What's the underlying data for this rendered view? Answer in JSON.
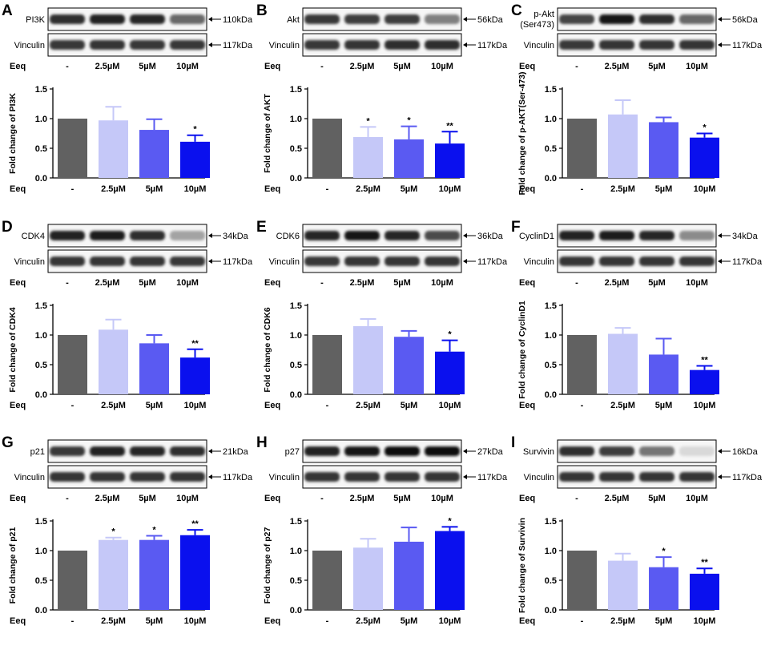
{
  "figure": {
    "dose_header": "Eeq",
    "doses": [
      "-",
      "2.5µM",
      "5µM",
      "10µM"
    ],
    "bar_colors": [
      "#616161",
      "#c5c8f8",
      "#5a5af2",
      "#0a10ee"
    ],
    "y_ticks": [
      "0.0",
      "0.5",
      "1.0",
      "1.5"
    ],
    "panels": [
      {
        "letter": "A",
        "blots": [
          {
            "label": "PI3K",
            "kda": "110kDa",
            "intensity": [
              0.85,
              0.9,
              0.88,
              0.6
            ]
          },
          {
            "label": "Vinculin",
            "kda": "117kDa",
            "intensity": [
              0.8,
              0.82,
              0.8,
              0.8
            ]
          }
        ]
      },
      {
        "letter": "B",
        "blots": [
          {
            "label": "Akt",
            "kda": "56kDa",
            "intensity": [
              0.8,
              0.78,
              0.78,
              0.5
            ]
          },
          {
            "label": "Vinculin",
            "kda": "117kDa",
            "intensity": [
              0.8,
              0.82,
              0.85,
              0.85
            ]
          }
        ]
      },
      {
        "letter": "C",
        "blots": [
          {
            "label": "p-Akt",
            "label2": "(Ser473)",
            "kda": "56kDa",
            "intensity": [
              0.75,
              0.95,
              0.85,
              0.6
            ]
          },
          {
            "label": "Vinculin",
            "kda": "117kDa",
            "intensity": [
              0.8,
              0.82,
              0.82,
              0.82
            ]
          }
        ]
      },
      {
        "letter": "D",
        "blots": [
          {
            "label": "CDK4",
            "kda": "34kDa",
            "intensity": [
              0.9,
              0.92,
              0.85,
              0.35
            ]
          },
          {
            "label": "Vinculin",
            "kda": "117kDa",
            "intensity": [
              0.82,
              0.82,
              0.82,
              0.8
            ]
          }
        ]
      },
      {
        "letter": "E",
        "blots": [
          {
            "label": "CDK6",
            "kda": "36kDa",
            "intensity": [
              0.88,
              0.95,
              0.88,
              0.72
            ]
          },
          {
            "label": "Vinculin",
            "kda": "117kDa",
            "intensity": [
              0.8,
              0.82,
              0.82,
              0.82
            ]
          }
        ]
      },
      {
        "letter": "F",
        "blots": [
          {
            "label": "CyclinD1",
            "kda": "34kDa",
            "intensity": [
              0.9,
              0.92,
              0.88,
              0.45
            ]
          },
          {
            "label": "Vinculin",
            "kda": "117kDa",
            "intensity": [
              0.82,
              0.82,
              0.82,
              0.82
            ]
          }
        ]
      },
      {
        "letter": "G",
        "blots": [
          {
            "label": "p21",
            "kda": "21kDa",
            "intensity": [
              0.8,
              0.9,
              0.88,
              0.85
            ]
          },
          {
            "label": "Vinculin",
            "kda": "117kDa",
            "intensity": [
              0.82,
              0.82,
              0.82,
              0.82
            ]
          }
        ]
      },
      {
        "letter": "H",
        "blots": [
          {
            "label": "p27",
            "kda": "27kDa",
            "intensity": [
              0.9,
              0.95,
              0.98,
              1.0
            ]
          },
          {
            "label": "Vinculin",
            "kda": "117kDa",
            "intensity": [
              0.82,
              0.82,
              0.82,
              0.82
            ]
          }
        ]
      },
      {
        "letter": "I",
        "blots": [
          {
            "label": "Survivin",
            "kda": "16kDa",
            "intensity": [
              0.85,
              0.78,
              0.55,
              0.12
            ]
          },
          {
            "label": "Vinculin",
            "kda": "117kDa",
            "intensity": [
              0.82,
              0.82,
              0.82,
              0.82
            ]
          }
        ]
      }
    ]
  },
  "chart_data": [
    {
      "type": "bar",
      "panel": "A",
      "ylabel": "Fold change of PI3K",
      "xlabel": "Eeq",
      "categories": [
        "-",
        "2.5µM",
        "5µM",
        "10µM"
      ],
      "values": [
        1.0,
        0.97,
        0.81,
        0.61
      ],
      "errors": [
        0,
        0.23,
        0.18,
        0.11
      ],
      "significance": [
        "",
        "",
        "",
        "*"
      ],
      "ylim": [
        0,
        1.5
      ]
    },
    {
      "type": "bar",
      "panel": "B",
      "ylabel": "Fold change of AKT",
      "xlabel": "Eeq",
      "categories": [
        "-",
        "2.5µM",
        "5µM",
        "10µM"
      ],
      "values": [
        1.0,
        0.69,
        0.65,
        0.58
      ],
      "errors": [
        0,
        0.17,
        0.22,
        0.2
      ],
      "significance": [
        "",
        "*",
        "*",
        "**"
      ],
      "ylim": [
        0,
        1.5
      ]
    },
    {
      "type": "bar",
      "panel": "C",
      "ylabel": "Fold change of p-AKT(Ser-473)",
      "xlabel": "Eeq",
      "categories": [
        "-",
        "2.5µM",
        "5µM",
        "10µM"
      ],
      "values": [
        1.0,
        1.07,
        0.94,
        0.68
      ],
      "errors": [
        0,
        0.24,
        0.08,
        0.07
      ],
      "significance": [
        "",
        "",
        "",
        "*"
      ],
      "ylim": [
        0,
        1.5
      ]
    },
    {
      "type": "bar",
      "panel": "D",
      "ylabel": "Fold change of CDK4",
      "xlabel": "Eeq",
      "categories": [
        "-",
        "2.5µM",
        "5µM",
        "10µM"
      ],
      "values": [
        1.0,
        1.09,
        0.86,
        0.62
      ],
      "errors": [
        0,
        0.17,
        0.14,
        0.14
      ],
      "significance": [
        "",
        "",
        "",
        "**"
      ],
      "ylim": [
        0,
        1.5
      ]
    },
    {
      "type": "bar",
      "panel": "E",
      "ylabel": "Fold change of CDK6",
      "xlabel": "Eeq",
      "categories": [
        "-",
        "2.5µM",
        "5µM",
        "10µM"
      ],
      "values": [
        1.0,
        1.15,
        0.97,
        0.72
      ],
      "errors": [
        0,
        0.12,
        0.1,
        0.19
      ],
      "significance": [
        "",
        "",
        "",
        "*"
      ],
      "ylim": [
        0,
        1.5
      ]
    },
    {
      "type": "bar",
      "panel": "F",
      "ylabel": "Fold change of CyclinD1",
      "xlabel": "Eeq",
      "categories": [
        "-",
        "2.5µM",
        "5µM",
        "10µM"
      ],
      "values": [
        1.0,
        1.02,
        0.67,
        0.41
      ],
      "errors": [
        0,
        0.1,
        0.27,
        0.07
      ],
      "significance": [
        "",
        "",
        "",
        "**"
      ],
      "ylim": [
        0,
        1.5
      ]
    },
    {
      "type": "bar",
      "panel": "G",
      "ylabel": "Fold change of p21",
      "xlabel": "Eeq",
      "categories": [
        "-",
        "2.5µM",
        "5µM",
        "10µM"
      ],
      "values": [
        1.0,
        1.18,
        1.18,
        1.26
      ],
      "errors": [
        0,
        0.04,
        0.07,
        0.09
      ],
      "significance": [
        "",
        "*",
        "*",
        "**"
      ],
      "ylim": [
        0,
        1.5
      ]
    },
    {
      "type": "bar",
      "panel": "H",
      "ylabel": "Fold change of p27",
      "xlabel": "Eeq",
      "categories": [
        "-",
        "2.5µM",
        "5µM",
        "10µM"
      ],
      "values": [
        1.0,
        1.05,
        1.15,
        1.33
      ],
      "errors": [
        0,
        0.15,
        0.24,
        0.07
      ],
      "significance": [
        "",
        "",
        "",
        "*"
      ],
      "ylim": [
        0,
        1.5
      ]
    },
    {
      "type": "bar",
      "panel": "I",
      "ylabel": "Fold change of Survivin",
      "xlabel": "Eeq",
      "categories": [
        "-",
        "2.5µM",
        "5µM",
        "10µM"
      ],
      "values": [
        1.0,
        0.83,
        0.72,
        0.61
      ],
      "errors": [
        0,
        0.12,
        0.17,
        0.09
      ],
      "significance": [
        "",
        "",
        "*",
        "**"
      ],
      "ylim": [
        0,
        1.5
      ]
    }
  ]
}
